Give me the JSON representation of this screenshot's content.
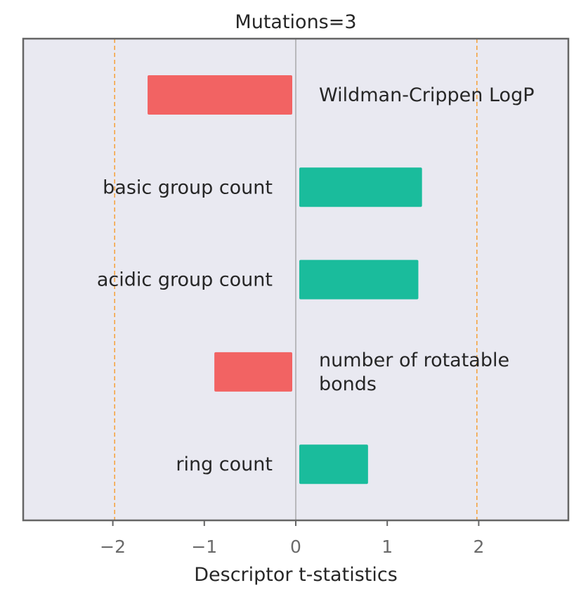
{
  "chart_data": {
    "type": "bar",
    "orientation": "horizontal",
    "title": "Mutations=3",
    "xlabel": "Descriptor t-statistics",
    "ylabel": "",
    "xlim": [
      -2.98,
      2.98
    ],
    "xticks": [
      -2,
      -1,
      0,
      1,
      2
    ],
    "xtick_labels": [
      "−2",
      "−1",
      "0",
      "1",
      "2"
    ],
    "reference_lines": [
      -1.98,
      1.98
    ],
    "grid": false,
    "categories": [
      "Wildman-Crippen LogP",
      "basic group count",
      "acidic group count",
      "number of rotatable bonds",
      "ring count"
    ],
    "label_lines": [
      [
        "Wildman-Crippen LogP"
      ],
      [
        "basic group count"
      ],
      [
        "acidic group count"
      ],
      [
        "number of rotatable",
        "bonds"
      ],
      [
        "ring count"
      ]
    ],
    "values": [
      -1.62,
      1.38,
      1.34,
      -0.89,
      0.79
    ],
    "colors": {
      "positive": "#1abc9c",
      "negative": "#f26363",
      "reference_line": "#f5a442",
      "zero_line": "#999999",
      "plot_background": "#e9e9f1",
      "frame": "#656565"
    }
  }
}
